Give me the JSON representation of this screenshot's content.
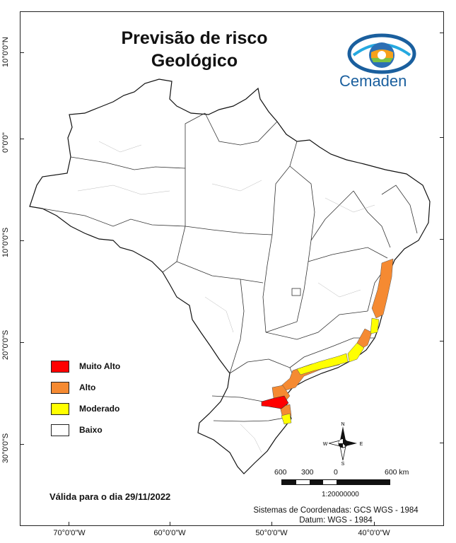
{
  "map": {
    "title_line1": "Previsão de risco",
    "title_line2": "Geológico",
    "brand": "Cemaden",
    "legend": [
      {
        "label": "Muito Alto",
        "color": "#ff0000"
      },
      {
        "label": "Alto",
        "color": "#f58a32"
      },
      {
        "label": "Moderado",
        "color": "#ffff00"
      },
      {
        "label": "Baixo",
        "color": "#ffffff"
      }
    ],
    "validity": "Válida para o dia 29/11/2022",
    "crs_line1": "Sistemas de Coordenadas: GCS WGS - 1984",
    "crs_line2": "Datum: WGS - 1984",
    "scale": {
      "labels": [
        "600",
        "300",
        "0",
        "600 km"
      ],
      "ratio": "1:20000000"
    },
    "north": {
      "n": "N",
      "s": "S",
      "e": "E",
      "w": "W"
    },
    "lat_labels": [
      "10°0'0\"N",
      "0°0'0\"",
      "10°0'0\"S",
      "20°0'0\"S",
      "30°0'0\"S"
    ],
    "lon_labels": [
      "70°0'0\"W",
      "60°0'0\"W",
      "50°0'0\"W",
      "40°0'0\"W"
    ]
  }
}
